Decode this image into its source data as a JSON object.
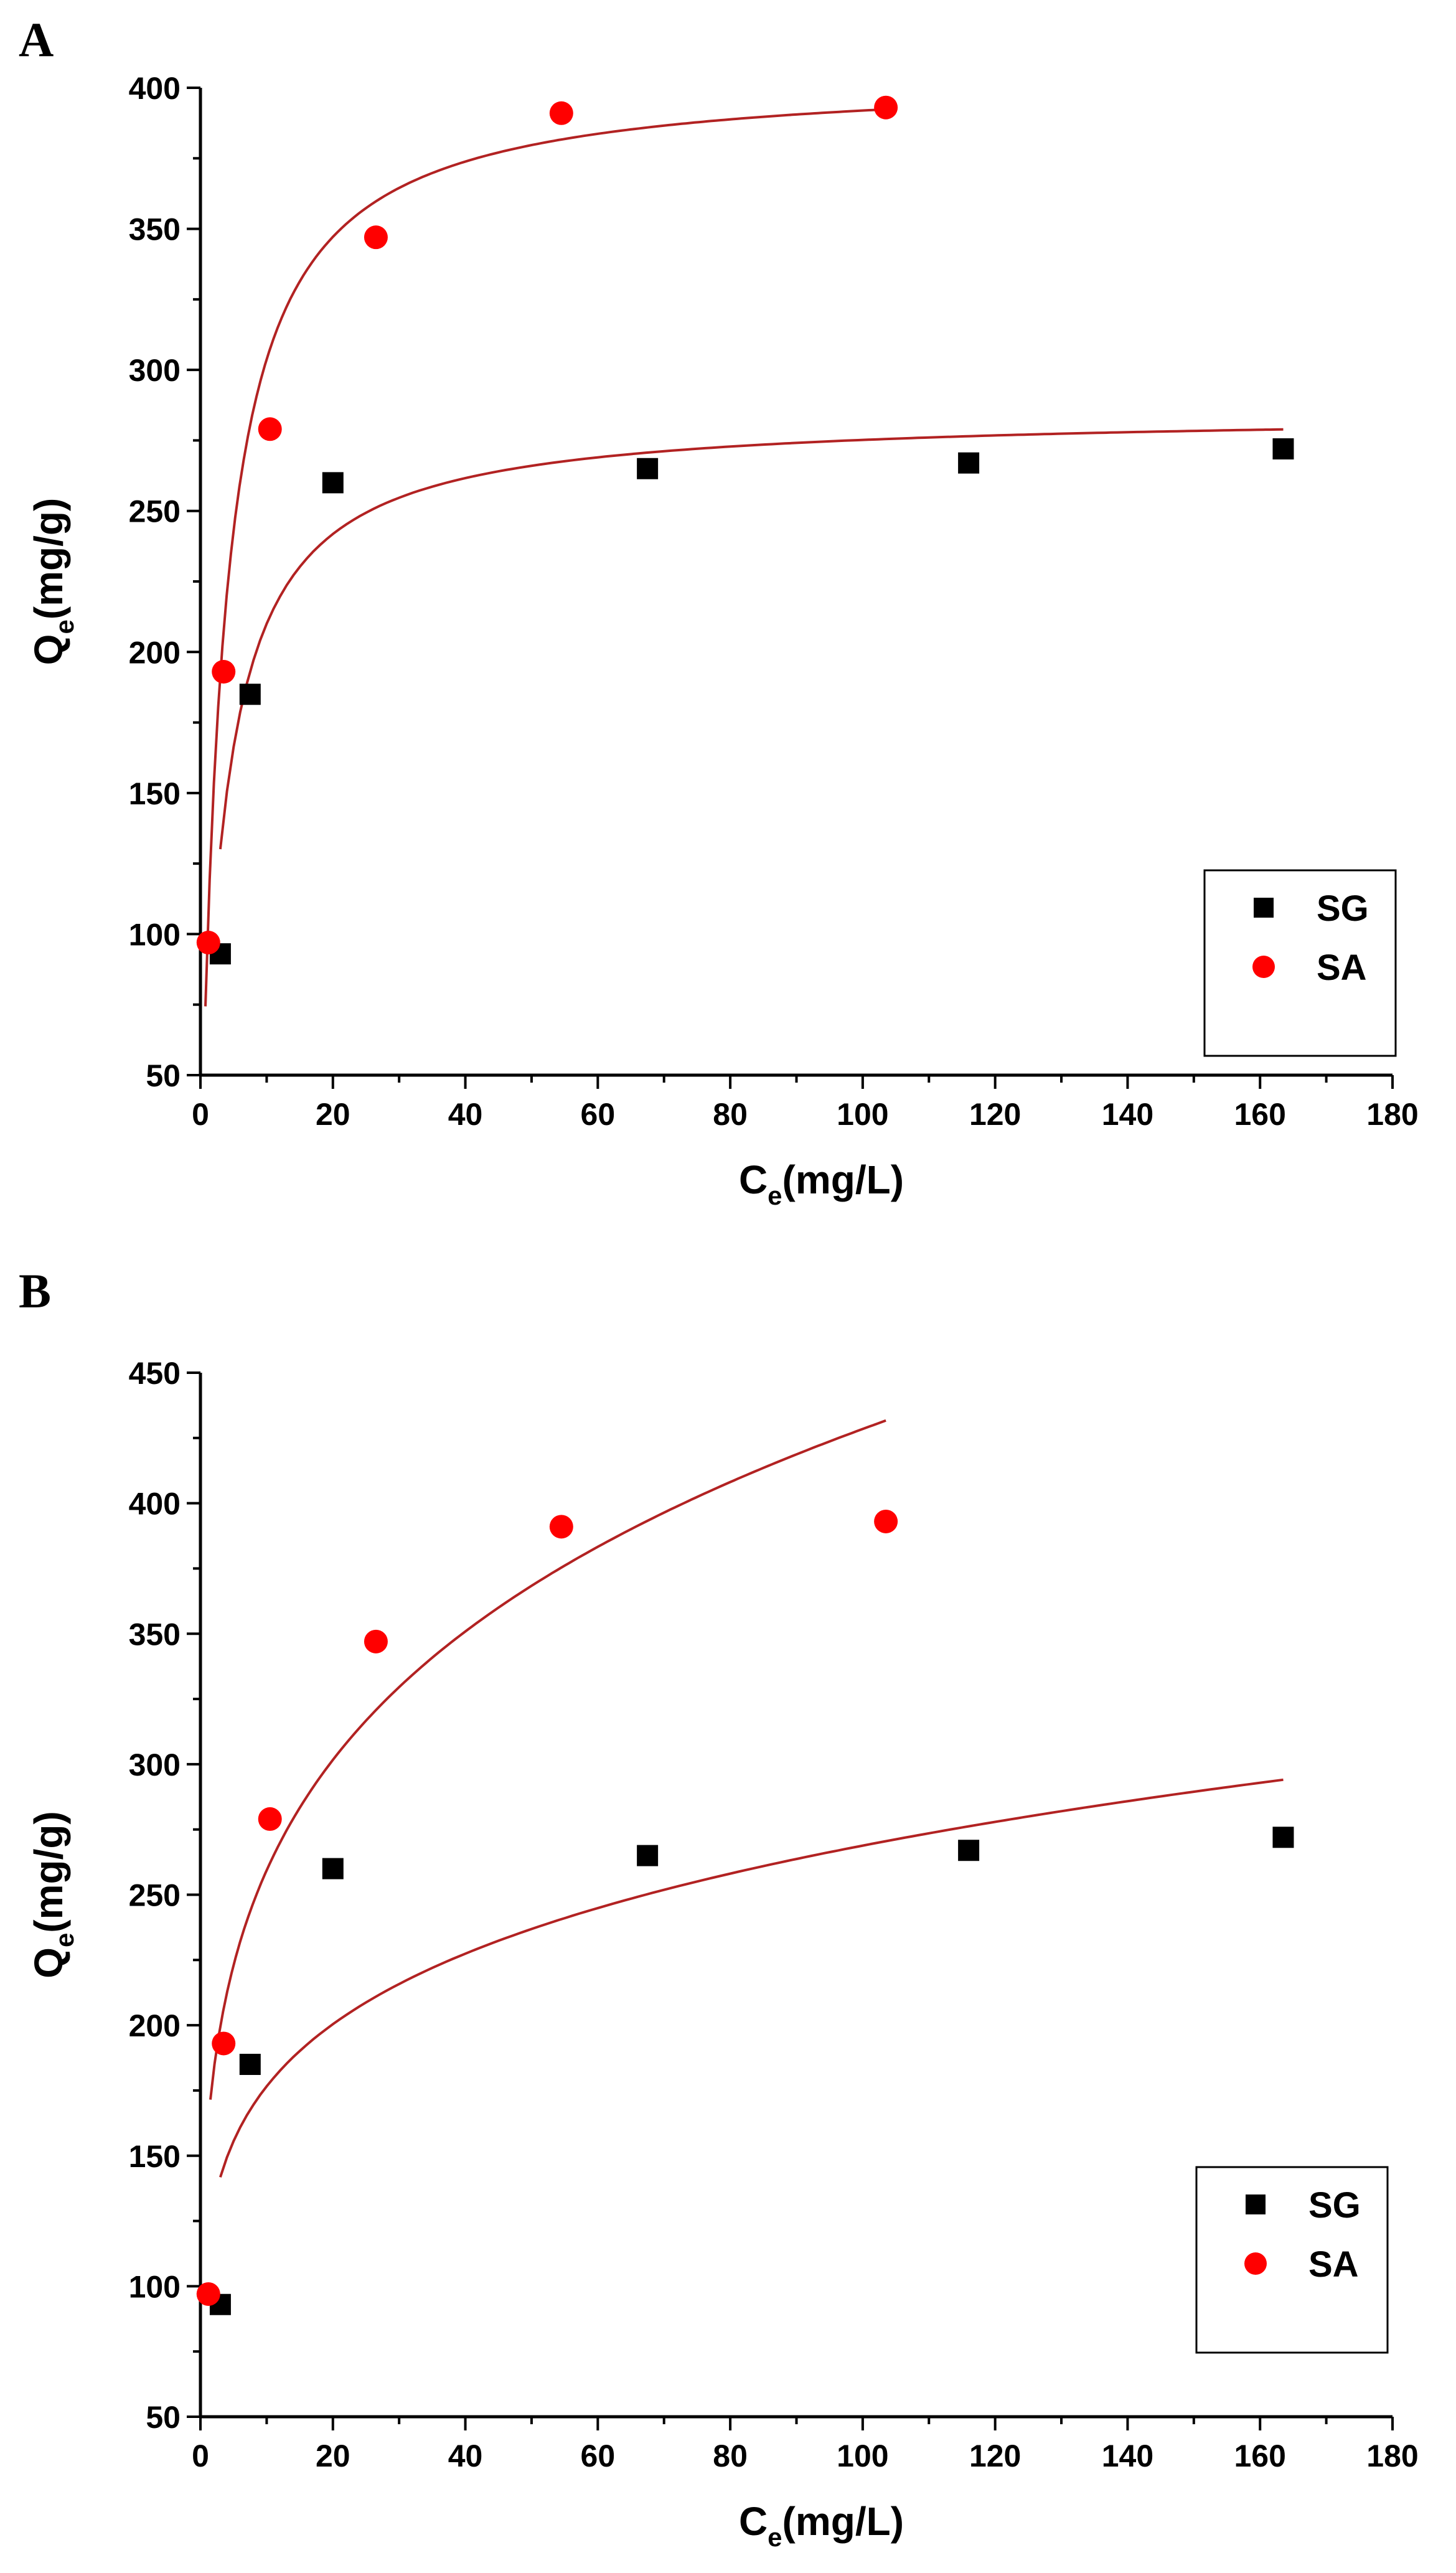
{
  "chart_data": [
    {
      "type": "scatter",
      "panel_label": "A",
      "title": "",
      "xlabel": "C",
      "xlabel_sub": "e",
      "xlabel_unit": "(mg/L)",
      "ylabel": "Q",
      "ylabel_sub": "e",
      "ylabel_unit": "(mg/g)",
      "xlim": [
        0,
        180
      ],
      "ylim": [
        50,
        400
      ],
      "xticks": [
        0,
        20,
        40,
        60,
        80,
        100,
        120,
        140,
        160,
        180
      ],
      "yticks": [
        50,
        100,
        150,
        200,
        250,
        300,
        350,
        400
      ],
      "legend_position": "bottom-right",
      "series": [
        {
          "name": "SG",
          "marker": "square",
          "color": "#000000",
          "x": [
            3,
            7.5,
            20,
            67.5,
            116,
            163.5
          ],
          "y": [
            93,
            185,
            260,
            265,
            267,
            272
          ],
          "fit": {
            "model": "langmuir",
            "qmax": 285,
            "K": 0.28,
            "x_start": 3,
            "x_end": 163.5,
            "color": "#b22222"
          }
        },
        {
          "name": "SA",
          "marker": "circle",
          "color": "#ff0000",
          "x": [
            1.2,
            3.5,
            10.5,
            26.5,
            54.5,
            103.5
          ],
          "y": [
            97,
            193,
            279,
            347,
            391,
            393
          ],
          "fit": {
            "model": "langmuir",
            "qmax": 405,
            "K": 0.3,
            "x_start": 0.75,
            "x_end": 103.5,
            "color": "#b22222"
          }
        }
      ]
    },
    {
      "type": "scatter",
      "panel_label": "B",
      "title": "",
      "xlabel": "C",
      "xlabel_sub": "e",
      "xlabel_unit": "(mg/L)",
      "ylabel": "Q",
      "ylabel_sub": "e",
      "ylabel_unit": "(mg/g)",
      "xlim": [
        0,
        180
      ],
      "ylim": [
        50,
        450
      ],
      "xticks": [
        0,
        20,
        40,
        60,
        80,
        100,
        120,
        140,
        160,
        180
      ],
      "yticks": [
        50,
        100,
        150,
        200,
        250,
        300,
        350,
        400,
        450
      ],
      "legend_position": "bottom-right",
      "series": [
        {
          "name": "SG",
          "marker": "square",
          "color": "#000000",
          "x": [
            3,
            7.5,
            20,
            67.5,
            116,
            163.5
          ],
          "y": [
            93,
            185,
            260,
            265,
            267,
            272
          ],
          "fit": {
            "model": "freundlich",
            "kf": 116,
            "n_inv": 0.1825,
            "x_start": 3,
            "x_end": 163.5,
            "color": "#b22222"
          }
        },
        {
          "name": "SA",
          "marker": "circle",
          "color": "#ff0000",
          "x": [
            1.2,
            3.5,
            10.5,
            26.5,
            54.5,
            103.5
          ],
          "y": [
            97,
            193,
            279,
            347,
            391,
            393
          ],
          "fit": {
            "model": "freundlich",
            "kf": 157,
            "n_inv": 0.218,
            "x_start": 1.5,
            "x_end": 103.5,
            "color": "#b22222"
          }
        }
      ]
    }
  ]
}
